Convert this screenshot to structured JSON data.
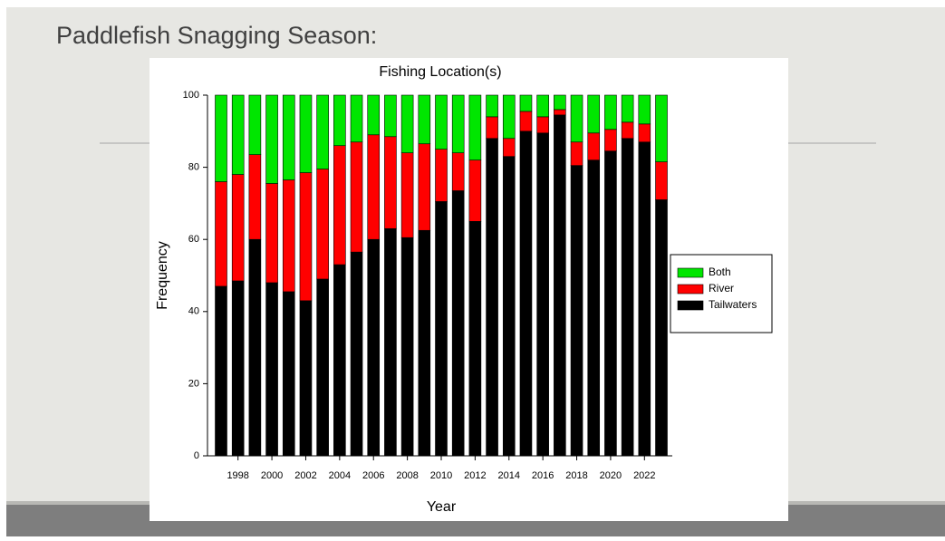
{
  "slide_title": "Paddlefish Snagging Season:",
  "chart_data": {
    "type": "stacked_bar",
    "title": "Fishing Location(s)",
    "x_label": "Year",
    "y_label": "Frequency",
    "categories": [
      null,
      "1998",
      null,
      "2000",
      null,
      "2002",
      null,
      "2004",
      null,
      "2006",
      null,
      "2008",
      null,
      "2010",
      null,
      "2012",
      null,
      "2014",
      null,
      "2016",
      null,
      "2018",
      null,
      "2020",
      null,
      "2022",
      null
    ],
    "series": [
      {
        "name": "Tailwaters",
        "color": "#000000",
        "values": [
          47,
          48.5,
          60,
          48,
          45.5,
          43,
          49,
          53,
          56.5,
          60,
          63,
          60.5,
          62.5,
          70.5,
          73.5,
          65,
          88,
          83,
          90,
          89.5,
          94.5,
          80.5,
          82,
          84.5,
          88,
          87,
          71
        ]
      },
      {
        "name": "River",
        "color": "#ff0000",
        "values": [
          29,
          29.5,
          23.5,
          27.5,
          31,
          35.5,
          30.5,
          33,
          30.5,
          29,
          25.5,
          23.5,
          24,
          14.5,
          10.5,
          17,
          6,
          5,
          5.5,
          4.5,
          1.5,
          6.5,
          7.5,
          6,
          4.5,
          5,
          10.5
        ]
      },
      {
        "name": "Both",
        "color": "#00e600",
        "values": [
          24,
          22,
          16.5,
          24.5,
          23.5,
          21.5,
          20.5,
          14,
          13,
          11,
          11.5,
          16,
          13.5,
          15,
          16,
          18,
          6,
          12,
          4.5,
          6,
          4,
          13,
          10.5,
          9.5,
          7.5,
          8,
          18.5
        ]
      }
    ],
    "ylim": [
      0,
      100
    ],
    "yticks": [
      0,
      20,
      40,
      60,
      80,
      100
    ],
    "grid": false,
    "legend": "right"
  }
}
